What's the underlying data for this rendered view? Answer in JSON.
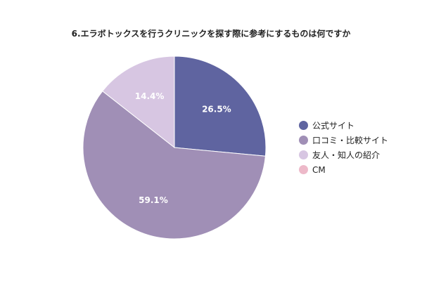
{
  "chart_data": {
    "type": "pie",
    "title": "6.エラボトックスを行うクリニックを探す際に参考にするものは何ですか",
    "slices": [
      {
        "label": "公式サイト",
        "value": 26.5,
        "value_label": "26.5%",
        "color": "#5f64a0"
      },
      {
        "label": "口コミ・比較サイト",
        "value": 59.1,
        "value_label": "59.1%",
        "color": "#a08fb6"
      },
      {
        "label": "友人・知人の紹介",
        "value": 14.4,
        "value_label": "14.4%",
        "color": "#d7c6e2"
      },
      {
        "label": "CM",
        "value": 0,
        "value_label": "",
        "color": "#edb9c9"
      }
    ],
    "legend_position": "right",
    "start_angle": "12 o'clock",
    "direction": "clockwise"
  }
}
